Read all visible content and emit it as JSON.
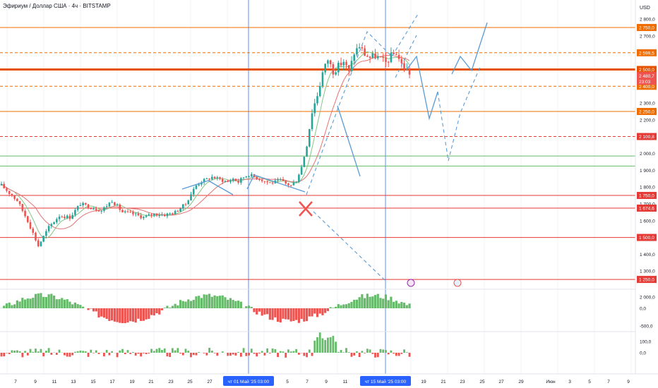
{
  "header": {
    "title": "Эфириум / Доллар США · 4ч · BITSTAMP",
    "currency": "USD"
  },
  "chart_data": {
    "type": "candlestick",
    "ylim": [
      1200,
      2880
    ],
    "price_axis_ticks": [
      "2 800,0",
      "2 700,0",
      "2 300,0",
      "2 200,0",
      "2 000,0",
      "1 900,0",
      "1 800,0",
      "1 700,0",
      "1 600,0",
      "1 400,0",
      "1 300,0"
    ],
    "horizontal_levels": [
      {
        "value": 2750,
        "label": "2 750,0",
        "style": "solid",
        "color": "#ef6c00"
      },
      {
        "value": 2599.5,
        "label": "2 599,5",
        "style": "dashed",
        "color": "#ef6c00"
      },
      {
        "value": 2500,
        "label": "2 500,0",
        "style": "thick",
        "color": "#e65100"
      },
      {
        "value": 2400,
        "label": "2 400,0",
        "style": "dashed",
        "color": "#ef6c00"
      },
      {
        "value": 2250,
        "label": "2 250,0",
        "style": "solid",
        "color": "#ef6c00"
      },
      {
        "value": 2100.8,
        "label": "2 100,8",
        "style": "dashed",
        "color": "#e53935"
      },
      {
        "value": 1985,
        "label": "",
        "style": "solid",
        "color": "#66bb6a"
      },
      {
        "value": 1925,
        "label": "",
        "style": "solid",
        "color": "#66bb6a"
      },
      {
        "value": 1750,
        "label": "1 750,0",
        "style": "solid",
        "color": "#e53935"
      },
      {
        "value": 1674.6,
        "label": "1 674,6",
        "style": "solid",
        "color": "#e53935"
      },
      {
        "value": 1500,
        "label": "1 500,0",
        "style": "solid",
        "color": "#e53935"
      },
      {
        "value": 1250,
        "label": "1 250,0",
        "style": "solid",
        "color": "#e53935"
      }
    ],
    "last_price": {
      "value": "2 480,7",
      "countdown": "23:03"
    },
    "x_ticks": [
      "7",
      "9",
      "11",
      "13",
      "15",
      "17",
      "19",
      "21",
      "23",
      "25",
      "27",
      "5",
      "7",
      "9",
      "11",
      "19",
      "21",
      "23",
      "25",
      "27",
      "29",
      "Июн",
      "3",
      "5",
      "7",
      "9"
    ],
    "x_highlight": [
      "чт 01 Май '25   03:00",
      "чт 15 Май '25   03:00"
    ],
    "close_path": [
      [
        0,
        1810
      ],
      [
        6,
        1720
      ],
      [
        10,
        1600
      ],
      [
        14,
        1450
      ],
      [
        18,
        1560
      ],
      [
        22,
        1630
      ],
      [
        26,
        1620
      ],
      [
        30,
        1700
      ],
      [
        34,
        1680
      ],
      [
        38,
        1660
      ],
      [
        42,
        1720
      ],
      [
        46,
        1650
      ],
      [
        50,
        1640
      ],
      [
        54,
        1620
      ],
      [
        58,
        1640
      ],
      [
        62,
        1635
      ],
      [
        66,
        1650
      ],
      [
        70,
        1700
      ],
      [
        72,
        1760
      ],
      [
        74,
        1810
      ],
      [
        76,
        1835
      ],
      [
        78,
        1845
      ],
      [
        80,
        1860
      ],
      [
        82,
        1850
      ],
      [
        84,
        1840
      ],
      [
        86,
        1830
      ],
      [
        88,
        1850
      ],
      [
        90,
        1830
      ],
      [
        92,
        1860
      ],
      [
        94,
        1875
      ],
      [
        96,
        1860
      ],
      [
        98,
        1850
      ],
      [
        100,
        1835
      ],
      [
        102,
        1825
      ],
      [
        104,
        1830
      ],
      [
        106,
        1840
      ],
      [
        108,
        1820
      ],
      [
        110,
        1810
      ],
      [
        112,
        1840
      ],
      [
        114,
        1920
      ],
      [
        116,
        2050
      ],
      [
        118,
        2250
      ],
      [
        120,
        2350
      ],
      [
        122,
        2480
      ],
      [
        124,
        2560
      ],
      [
        126,
        2490
      ],
      [
        128,
        2520
      ],
      [
        130,
        2550
      ],
      [
        132,
        2480
      ],
      [
        134,
        2600
      ],
      [
        136,
        2640
      ],
      [
        138,
        2590
      ],
      [
        140,
        2570
      ],
      [
        142,
        2580
      ],
      [
        144,
        2560
      ],
      [
        146,
        2540
      ],
      [
        148,
        2580
      ],
      [
        150,
        2600
      ],
      [
        152,
        2530
      ],
      [
        154,
        2500
      ],
      [
        155,
        2480
      ]
    ],
    "indicator_labels": [
      "2 000,0",
      "0,0",
      "-500,0",
      "100,0",
      "0,0"
    ],
    "annotations": [
      "cross-marker",
      "projection-arrows",
      "lightning-event",
      "us-flag-event"
    ]
  }
}
